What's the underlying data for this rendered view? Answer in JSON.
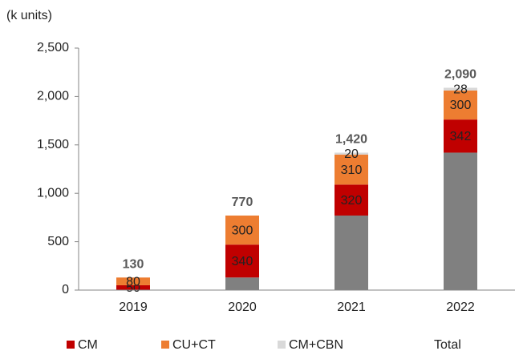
{
  "chart_data": {
    "type": "bar",
    "stacked": true,
    "y_label": "(k units)",
    "categories": [
      "2019",
      "2020",
      "2021",
      "2022"
    ],
    "ylim": [
      0,
      2500
    ],
    "yticks": [
      0,
      500,
      {
        "value": 1000,
        "label": "1,000"
      },
      {
        "value": 1500,
        "label": "1,500"
      },
      {
        "value": 2000,
        "label": "2,000"
      },
      {
        "value": 2500,
        "label": "2,500"
      }
    ],
    "series": [
      {
        "color": "#808080",
        "values": [
          0,
          130,
          770,
          1420
        ]
      },
      {
        "name": "CM",
        "color": "#c00000",
        "values": [
          50,
          340,
          320,
          342
        ]
      },
      {
        "name": "CU+CT",
        "color": "#ed7d31",
        "values": [
          80,
          300,
          310,
          300
        ]
      },
      {
        "name": "CM+CBN",
        "color": "#d9d9d9",
        "values": [
          null,
          null,
          20,
          28
        ]
      },
      {
        "name": "Total",
        "color": "#ffffff",
        "values": [
          130,
          770,
          1420,
          2090
        ],
        "value_labels": [
          "130",
          "770",
          "1,420",
          "2,090"
        ]
      }
    ]
  }
}
